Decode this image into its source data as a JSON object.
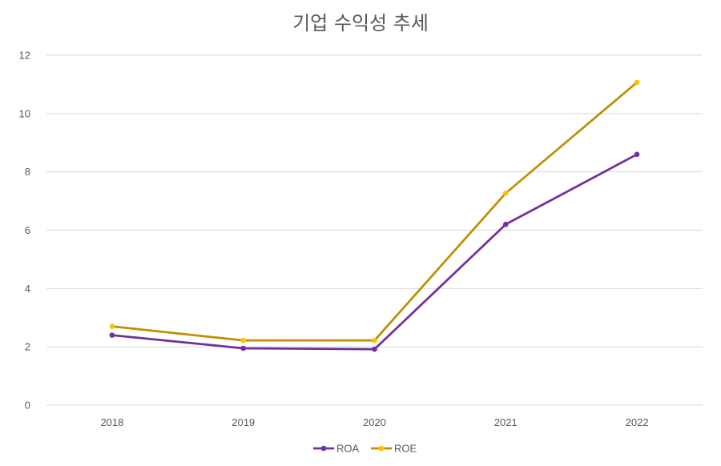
{
  "chart_data": {
    "type": "line",
    "title": "기업 수익성 추세",
    "categories": [
      "2018",
      "2019",
      "2020",
      "2021",
      "2022"
    ],
    "xlabel": "",
    "ylabel": "",
    "ylim": [
      0,
      12
    ],
    "yticks": [
      0,
      2,
      4,
      6,
      8,
      10,
      12
    ],
    "ytick_labels": [
      "0",
      "2",
      "4",
      "6",
      "8",
      "10",
      "12"
    ],
    "grid": true,
    "legend_position": "bottom",
    "series": [
      {
        "name": "ROA",
        "color": "#7030a0",
        "values": [
          2.4,
          1.95,
          1.92,
          6.2,
          8.6
        ]
      },
      {
        "name": "ROE",
        "color": "#bf9000",
        "marker_color": "#ffc000",
        "values": [
          2.7,
          2.22,
          2.22,
          7.27,
          11.07
        ]
      }
    ]
  }
}
